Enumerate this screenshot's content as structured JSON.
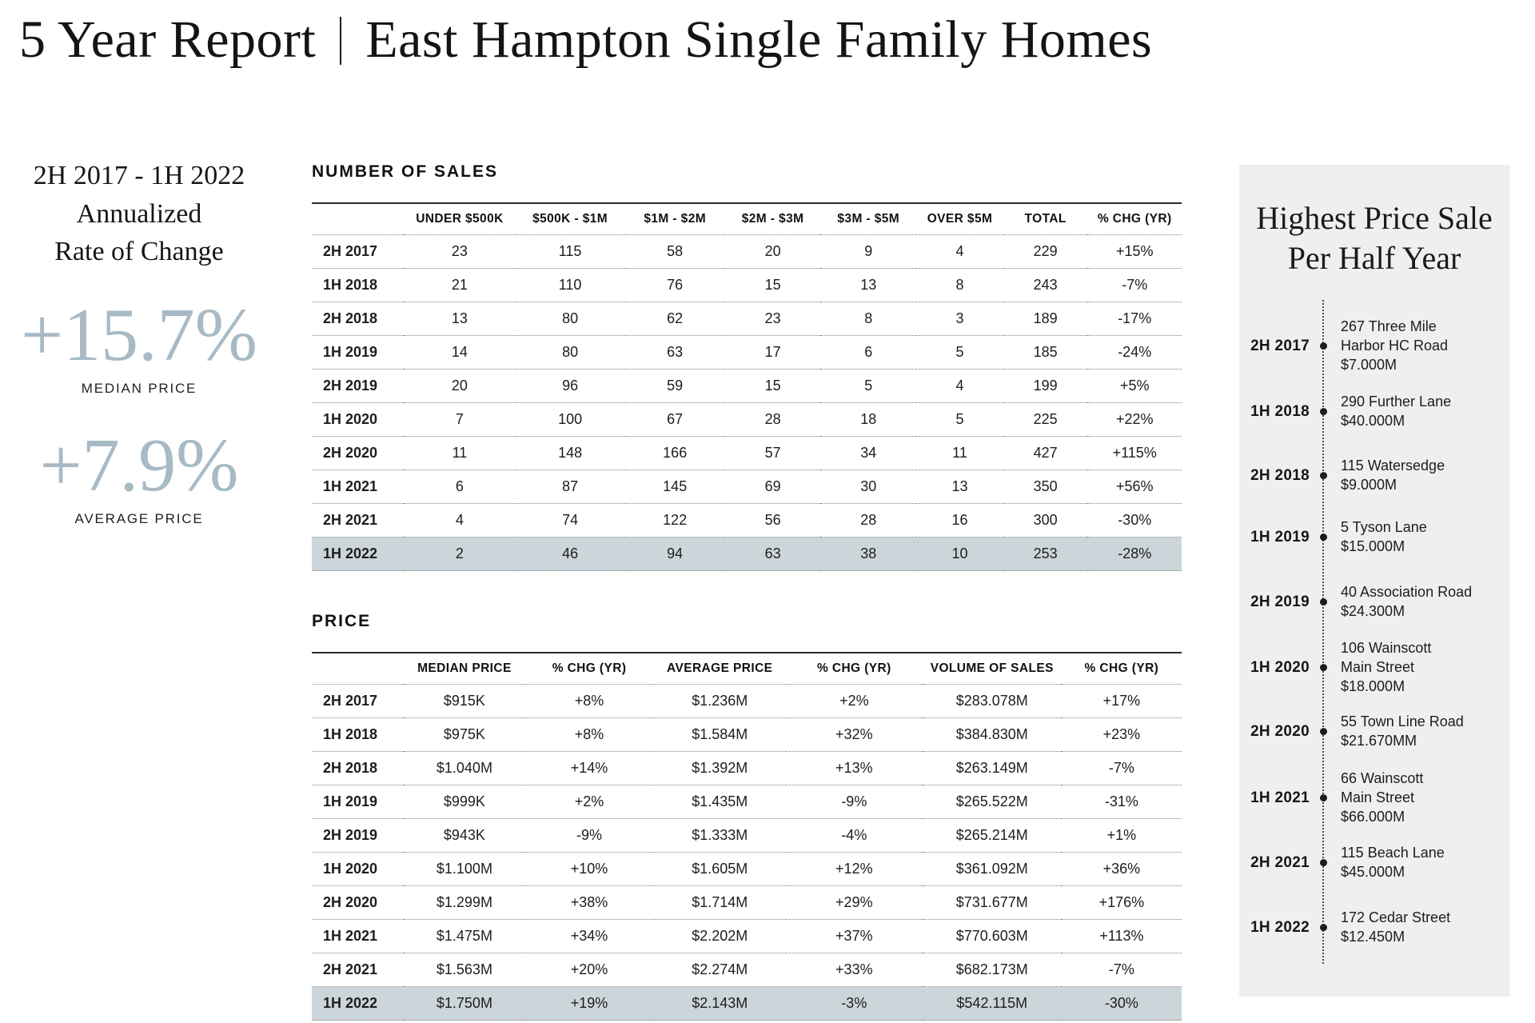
{
  "title": {
    "left": "5 Year Report",
    "right": "East Hampton Single Family Homes"
  },
  "summary": {
    "period_lines": [
      "2H 2017 - 1H 2022",
      "Annualized",
      "Rate of Change"
    ],
    "stats": [
      {
        "value": "+15.7%",
        "label": "MEDIAN PRICE"
      },
      {
        "value": "+7.9%",
        "label": "AVERAGE PRICE"
      }
    ]
  },
  "sales_table": {
    "section_label": "NUMBER OF SALES",
    "columns": [
      "",
      "UNDER $500K",
      "$500K - $1M",
      "$1M - $2M",
      "$2M - $3M",
      "$3M - $5M",
      "OVER $5M",
      "TOTAL",
      "% CHG (YR)"
    ],
    "rows": [
      {
        "period": "2H 2017",
        "values": [
          "23",
          "115",
          "58",
          "20",
          "9",
          "4",
          "229",
          "+15%"
        ],
        "highlight": false
      },
      {
        "period": "1H 2018",
        "values": [
          "21",
          "110",
          "76",
          "15",
          "13",
          "8",
          "243",
          "-7%"
        ],
        "highlight": false
      },
      {
        "period": "2H 2018",
        "values": [
          "13",
          "80",
          "62",
          "23",
          "8",
          "3",
          "189",
          "-17%"
        ],
        "highlight": false
      },
      {
        "period": "1H 2019",
        "values": [
          "14",
          "80",
          "63",
          "17",
          "6",
          "5",
          "185",
          "-24%"
        ],
        "highlight": false
      },
      {
        "period": "2H 2019",
        "values": [
          "20",
          "96",
          "59",
          "15",
          "5",
          "4",
          "199",
          "+5%"
        ],
        "highlight": false
      },
      {
        "period": "1H 2020",
        "values": [
          "7",
          "100",
          "67",
          "28",
          "18",
          "5",
          "225",
          "+22%"
        ],
        "highlight": false
      },
      {
        "period": "2H 2020",
        "values": [
          "11",
          "148",
          "166",
          "57",
          "34",
          "11",
          "427",
          "+115%"
        ],
        "highlight": false
      },
      {
        "period": "1H 2021",
        "values": [
          "6",
          "87",
          "145",
          "69",
          "30",
          "13",
          "350",
          "+56%"
        ],
        "highlight": false
      },
      {
        "period": "2H 2021",
        "values": [
          "4",
          "74",
          "122",
          "56",
          "28",
          "16",
          "300",
          "-30%"
        ],
        "highlight": false
      },
      {
        "period": "1H 2022",
        "values": [
          "2",
          "46",
          "94",
          "63",
          "38",
          "10",
          "253",
          "-28%"
        ],
        "highlight": true
      }
    ]
  },
  "price_table": {
    "section_label": "PRICE",
    "columns": [
      "",
      "MEDIAN PRICE",
      "% CHG (YR)",
      "AVERAGE PRICE",
      "% CHG (YR)",
      "VOLUME OF SALES",
      "% CHG (YR)"
    ],
    "rows": [
      {
        "period": "2H 2017",
        "values": [
          "$915K",
          "+8%",
          "$1.236M",
          "+2%",
          "$283.078M",
          "+17%"
        ],
        "highlight": false
      },
      {
        "period": "1H 2018",
        "values": [
          "$975K",
          "+8%",
          "$1.584M",
          "+32%",
          "$384.830M",
          "+23%"
        ],
        "highlight": false
      },
      {
        "period": "2H 2018",
        "values": [
          "$1.040M",
          "+14%",
          "$1.392M",
          "+13%",
          "$263.149M",
          "-7%"
        ],
        "highlight": false
      },
      {
        "period": "1H 2019",
        "values": [
          "$999K",
          "+2%",
          "$1.435M",
          "-9%",
          "$265.522M",
          "-31%"
        ],
        "highlight": false
      },
      {
        "period": "2H 2019",
        "values": [
          "$943K",
          "-9%",
          "$1.333M",
          "-4%",
          "$265.214M",
          "+1%"
        ],
        "highlight": false
      },
      {
        "period": "1H 2020",
        "values": [
          "$1.100M",
          "+10%",
          "$1.605M",
          "+12%",
          "$361.092M",
          "+36%"
        ],
        "highlight": false
      },
      {
        "period": "2H 2020",
        "values": [
          "$1.299M",
          "+38%",
          "$1.714M",
          "+29%",
          "$731.677M",
          "+176%"
        ],
        "highlight": false
      },
      {
        "period": "1H 2021",
        "values": [
          "$1.475M",
          "+34%",
          "$2.202M",
          "+37%",
          "$770.603M",
          "+113%"
        ],
        "highlight": false
      },
      {
        "period": "2H 2021",
        "values": [
          "$1.563M",
          "+20%",
          "$2.274M",
          "+33%",
          "$682.173M",
          "-7%"
        ],
        "highlight": false
      },
      {
        "period": "1H 2022",
        "values": [
          "$1.750M",
          "+19%",
          "$2.143M",
          "-3%",
          "$542.115M",
          "-30%"
        ],
        "highlight": true
      }
    ]
  },
  "timeline": {
    "title_lines": [
      "Highest Price Sale",
      "Per Half Year"
    ],
    "entries": [
      {
        "period": "2H 2017",
        "lines": [
          "267 Three Mile",
          "Harbor HC Road",
          "$7.000M"
        ]
      },
      {
        "period": "1H 2018",
        "lines": [
          "290 Further Lane",
          "$40.000M"
        ]
      },
      {
        "period": "2H 2018",
        "lines": [
          "115 Watersedge",
          "$9.000M"
        ]
      },
      {
        "period": "1H 2019",
        "lines": [
          "5 Tyson Lane",
          "$15.000M"
        ]
      },
      {
        "period": "2H 2019",
        "lines": [
          "40 Association Road",
          "$24.300M"
        ]
      },
      {
        "period": "1H 2020",
        "lines": [
          "106 Wainscott",
          "Main Street",
          "$18.000M"
        ]
      },
      {
        "period": "2H 2020",
        "lines": [
          "55 Town Line Road",
          "$21.670MM"
        ]
      },
      {
        "period": "1H 2021",
        "lines": [
          "66 Wainscott",
          "Main Street",
          "$66.000M"
        ]
      },
      {
        "period": "2H 2021",
        "lines": [
          "115 Beach Lane",
          "$45.000M"
        ]
      },
      {
        "period": "1H 2022",
        "lines": [
          "172 Cedar Street",
          "$12.450M"
        ]
      }
    ]
  },
  "colors": {
    "accent": "#a7bac6",
    "highlight_row": "#ccd5da",
    "panel_background": "#f0efef"
  }
}
